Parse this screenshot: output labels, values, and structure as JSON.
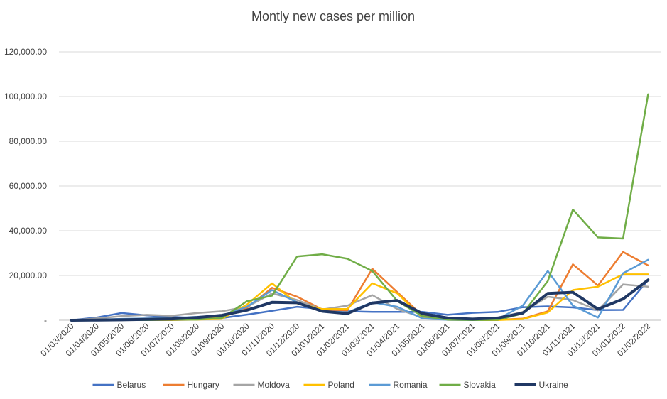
{
  "chart_data": {
    "type": "line",
    "title": "Montly new cases per million",
    "xlabel": "",
    "ylabel": "",
    "ylim": [
      0,
      120000
    ],
    "yticks": [
      {
        "value": 0,
        "label": "-"
      },
      {
        "value": 20000,
        "label": "20,000.00"
      },
      {
        "value": 40000,
        "label": "40,000.00"
      },
      {
        "value": 60000,
        "label": "60,000.00"
      },
      {
        "value": 80000,
        "label": "80,000.00"
      },
      {
        "value": 100000,
        "label": "100,000.00"
      },
      {
        "value": 120000,
        "label": "120,000.00"
      }
    ],
    "grid": true,
    "legend_position": "bottom",
    "categories": [
      "01/03/2020",
      "01/04/2020",
      "01/05/2020",
      "01/06/2020",
      "01/07/2020",
      "01/08/2020",
      "01/09/2020",
      "01/10/2020",
      "01/11/2020",
      "01/12/2020",
      "01/01/2021",
      "01/02/2021",
      "01/03/2021",
      "01/04/2021",
      "01/05/2021",
      "01/06/2021",
      "01/07/2021",
      "01/08/2021",
      "01/09/2021",
      "01/10/2021",
      "01/11/2021",
      "01/12/2021",
      "01/01/2022",
      "01/02/2022"
    ],
    "series": [
      {
        "name": "Belarus",
        "color": "#4472C4",
        "width": 2.5,
        "values": [
          0,
          1200,
          3200,
          2200,
          1500,
          1000,
          1000,
          2500,
          4200,
          6000,
          5000,
          4000,
          3700,
          3700,
          3700,
          2400,
          3300,
          3700,
          5800,
          6200,
          5700,
          4500,
          4600,
          18000
        ]
      },
      {
        "name": "Hungary",
        "color": "#ED7D31",
        "width": 2.5,
        "values": [
          0,
          100,
          100,
          100,
          100,
          300,
          1200,
          5500,
          14500,
          10500,
          4800,
          4400,
          23000,
          12500,
          2000,
          300,
          100,
          200,
          700,
          4000,
          25000,
          15500,
          30500,
          24500
        ]
      },
      {
        "name": "Moldova",
        "color": "#A5A5A5",
        "width": 2.5,
        "values": [
          0,
          800,
          1800,
          2400,
          2000,
          3200,
          4000,
          6000,
          12000,
          9000,
          4800,
          6500,
          11200,
          5000,
          1200,
          500,
          300,
          1000,
          3700,
          10500,
          9000,
          4400,
          16000,
          15000
        ]
      },
      {
        "name": "Poland",
        "color": "#FFC000",
        "width": 2.5,
        "values": [
          0,
          100,
          200,
          200,
          200,
          300,
          600,
          7000,
          16500,
          7500,
          5000,
          5000,
          16500,
          12000,
          1200,
          200,
          100,
          100,
          500,
          3500,
          13500,
          15000,
          20500,
          20500
        ]
      },
      {
        "name": "Romania",
        "color": "#5B9BD5",
        "width": 2.5,
        "values": [
          0,
          300,
          600,
          800,
          1000,
          1500,
          2000,
          6000,
          13500,
          8000,
          4000,
          3500,
          8000,
          6000,
          800,
          200,
          100,
          400,
          6500,
          22000,
          6500,
          1200,
          21000,
          27000
        ]
      },
      {
        "name": "Slovakia",
        "color": "#70AD47",
        "width": 2.5,
        "values": [
          0,
          200,
          100,
          100,
          200,
          300,
          1000,
          8500,
          11000,
          28500,
          29500,
          27500,
          22000,
          8500,
          1800,
          300,
          100,
          200,
          3000,
          17500,
          49500,
          37000,
          36500,
          101000
        ]
      },
      {
        "name": "Ukraine",
        "color": "#203864",
        "width": 4,
        "values": [
          0,
          100,
          200,
          400,
          600,
          1200,
          2200,
          4500,
          8000,
          7800,
          4000,
          3000,
          7700,
          8800,
          3000,
          1000,
          500,
          1000,
          3200,
          12000,
          12500,
          5000,
          9500,
          18000
        ]
      }
    ]
  }
}
